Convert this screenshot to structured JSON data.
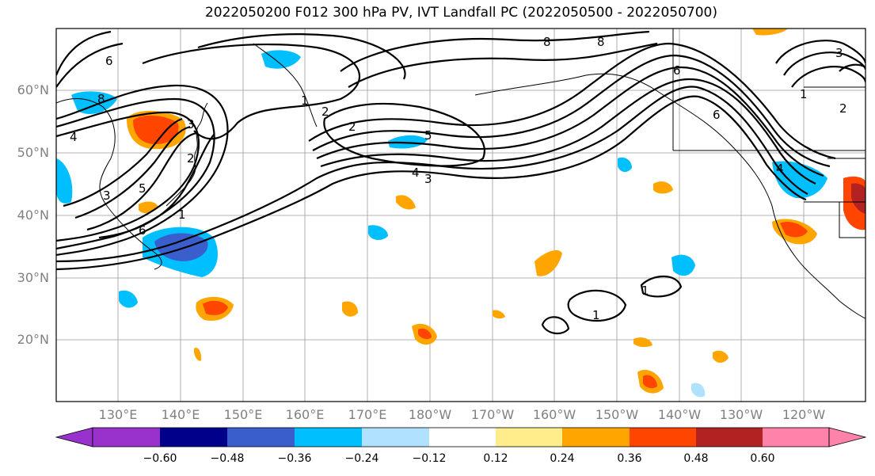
{
  "title": "2022050200 F012 300 hPa PV, IVT Landfall PC (2022050500 - 2022050700)",
  "map": {
    "lat_labels": [
      "60°N",
      "50°N",
      "40°N",
      "30°N",
      "20°N"
    ],
    "lon_labels": [
      "130°E",
      "140°E",
      "150°E",
      "160°E",
      "170°E",
      "180°W",
      "170°W",
      "160°W",
      "150°W",
      "140°W",
      "130°W",
      "120°W"
    ],
    "contour_labels": [
      "6",
      "8",
      "5",
      "4",
      "3",
      "2",
      "1",
      "6",
      "8",
      "8",
      "2",
      "4",
      "5",
      "6",
      "4",
      "3",
      "1",
      "2",
      "3",
      "6",
      "1",
      "1",
      "3",
      "1",
      "2"
    ],
    "grid": true
  },
  "colorbar": {
    "tick_labels": [
      "−0.60",
      "−0.48",
      "−0.36",
      "−0.24",
      "−0.12",
      "0.12",
      "0.24",
      "0.36",
      "0.48",
      "0.60"
    ],
    "colors": [
      "#9932CC",
      "#00008B",
      "#3A5FCD",
      "#00BFFF",
      "#B0E2FF",
      "#FFFFFF",
      "#FFEC8B",
      "#FFA500",
      "#FF4500",
      "#B22222",
      "#FF82AB"
    ]
  }
}
